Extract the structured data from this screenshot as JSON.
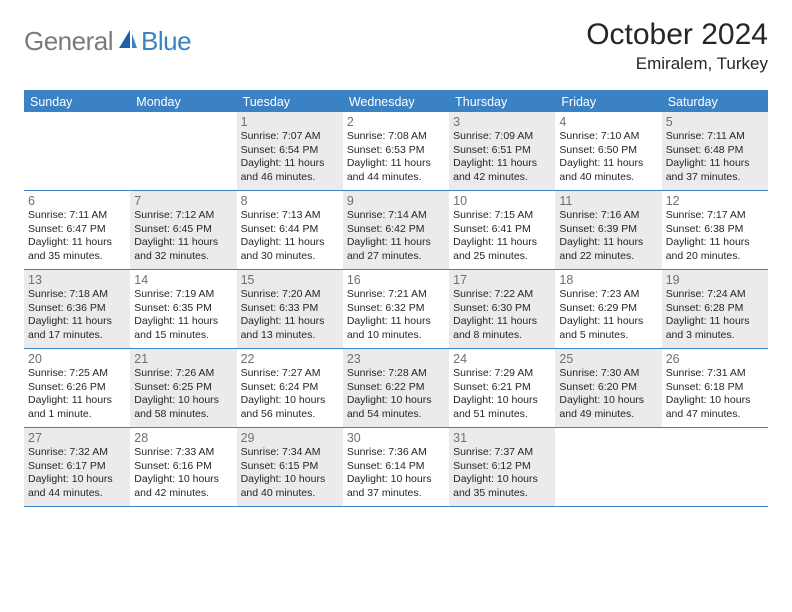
{
  "brand": {
    "part1": "General",
    "part2": "Blue"
  },
  "title": "October 2024",
  "subtitle": "Emiralem, Turkey",
  "colors": {
    "accent": "#3b82c4",
    "shade": "#ebebeb",
    "text": "#262626",
    "muted": "#707070",
    "grey": "#7b7b7b",
    "white": "#ffffff"
  },
  "weekdays": [
    "Sunday",
    "Monday",
    "Tuesday",
    "Wednesday",
    "Thursday",
    "Friday",
    "Saturday"
  ],
  "weeks": [
    [
      {
        "blank": true
      },
      {
        "blank": true
      },
      {
        "n": "1",
        "shade": true,
        "sr": "7:07 AM",
        "ss": "6:54 PM",
        "dl": "11 hours and 46 minutes."
      },
      {
        "n": "2",
        "shade": false,
        "sr": "7:08 AM",
        "ss": "6:53 PM",
        "dl": "11 hours and 44 minutes."
      },
      {
        "n": "3",
        "shade": true,
        "sr": "7:09 AM",
        "ss": "6:51 PM",
        "dl": "11 hours and 42 minutes."
      },
      {
        "n": "4",
        "shade": false,
        "sr": "7:10 AM",
        "ss": "6:50 PM",
        "dl": "11 hours and 40 minutes."
      },
      {
        "n": "5",
        "shade": true,
        "sr": "7:11 AM",
        "ss": "6:48 PM",
        "dl": "11 hours and 37 minutes."
      }
    ],
    [
      {
        "n": "6",
        "shade": false,
        "sr": "7:11 AM",
        "ss": "6:47 PM",
        "dl": "11 hours and 35 minutes."
      },
      {
        "n": "7",
        "shade": true,
        "sr": "7:12 AM",
        "ss": "6:45 PM",
        "dl": "11 hours and 32 minutes."
      },
      {
        "n": "8",
        "shade": false,
        "sr": "7:13 AM",
        "ss": "6:44 PM",
        "dl": "11 hours and 30 minutes."
      },
      {
        "n": "9",
        "shade": true,
        "sr": "7:14 AM",
        "ss": "6:42 PM",
        "dl": "11 hours and 27 minutes."
      },
      {
        "n": "10",
        "shade": false,
        "sr": "7:15 AM",
        "ss": "6:41 PM",
        "dl": "11 hours and 25 minutes."
      },
      {
        "n": "11",
        "shade": true,
        "sr": "7:16 AM",
        "ss": "6:39 PM",
        "dl": "11 hours and 22 minutes."
      },
      {
        "n": "12",
        "shade": false,
        "sr": "7:17 AM",
        "ss": "6:38 PM",
        "dl": "11 hours and 20 minutes."
      }
    ],
    [
      {
        "n": "13",
        "shade": true,
        "sr": "7:18 AM",
        "ss": "6:36 PM",
        "dl": "11 hours and 17 minutes."
      },
      {
        "n": "14",
        "shade": false,
        "sr": "7:19 AM",
        "ss": "6:35 PM",
        "dl": "11 hours and 15 minutes."
      },
      {
        "n": "15",
        "shade": true,
        "sr": "7:20 AM",
        "ss": "6:33 PM",
        "dl": "11 hours and 13 minutes."
      },
      {
        "n": "16",
        "shade": false,
        "sr": "7:21 AM",
        "ss": "6:32 PM",
        "dl": "11 hours and 10 minutes."
      },
      {
        "n": "17",
        "shade": true,
        "sr": "7:22 AM",
        "ss": "6:30 PM",
        "dl": "11 hours and 8 minutes."
      },
      {
        "n": "18",
        "shade": false,
        "sr": "7:23 AM",
        "ss": "6:29 PM",
        "dl": "11 hours and 5 minutes."
      },
      {
        "n": "19",
        "shade": true,
        "sr": "7:24 AM",
        "ss": "6:28 PM",
        "dl": "11 hours and 3 minutes."
      }
    ],
    [
      {
        "n": "20",
        "shade": false,
        "sr": "7:25 AM",
        "ss": "6:26 PM",
        "dl": "11 hours and 1 minute."
      },
      {
        "n": "21",
        "shade": true,
        "sr": "7:26 AM",
        "ss": "6:25 PM",
        "dl": "10 hours and 58 minutes."
      },
      {
        "n": "22",
        "shade": false,
        "sr": "7:27 AM",
        "ss": "6:24 PM",
        "dl": "10 hours and 56 minutes."
      },
      {
        "n": "23",
        "shade": true,
        "sr": "7:28 AM",
        "ss": "6:22 PM",
        "dl": "10 hours and 54 minutes."
      },
      {
        "n": "24",
        "shade": false,
        "sr": "7:29 AM",
        "ss": "6:21 PM",
        "dl": "10 hours and 51 minutes."
      },
      {
        "n": "25",
        "shade": true,
        "sr": "7:30 AM",
        "ss": "6:20 PM",
        "dl": "10 hours and 49 minutes."
      },
      {
        "n": "26",
        "shade": false,
        "sr": "7:31 AM",
        "ss": "6:18 PM",
        "dl": "10 hours and 47 minutes."
      }
    ],
    [
      {
        "n": "27",
        "shade": true,
        "sr": "7:32 AM",
        "ss": "6:17 PM",
        "dl": "10 hours and 44 minutes."
      },
      {
        "n": "28",
        "shade": false,
        "sr": "7:33 AM",
        "ss": "6:16 PM",
        "dl": "10 hours and 42 minutes."
      },
      {
        "n": "29",
        "shade": true,
        "sr": "7:34 AM",
        "ss": "6:15 PM",
        "dl": "10 hours and 40 minutes."
      },
      {
        "n": "30",
        "shade": false,
        "sr": "7:36 AM",
        "ss": "6:14 PM",
        "dl": "10 hours and 37 minutes."
      },
      {
        "n": "31",
        "shade": true,
        "sr": "7:37 AM",
        "ss": "6:12 PM",
        "dl": "10 hours and 35 minutes."
      },
      {
        "blank": true
      },
      {
        "blank": true
      }
    ]
  ],
  "labels": {
    "sunrise": "Sunrise:",
    "sunset": "Sunset:",
    "daylight": "Daylight:"
  }
}
